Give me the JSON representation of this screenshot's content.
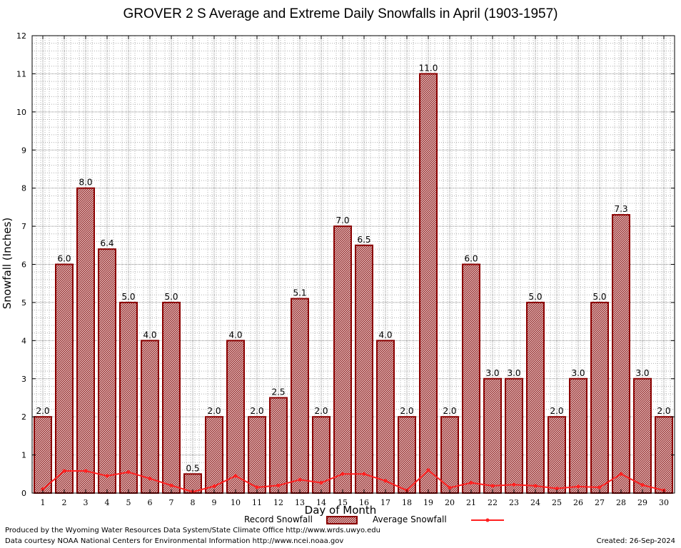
{
  "footer": {
    "produced_by": "Produced by the Wyoming Water Resources Data System/State Climate Office http://www.wrds.uwyo.edu",
    "courtesy": "Data courtesy NOAA National Centers for Environmental Information http://www.ncei.noaa.gov",
    "created": "Created: 26-Sep-2024"
  },
  "colors": {
    "bar_fill": "#9c2a2a",
    "bar_stroke": "#8b0000",
    "average_line": "#ff2020",
    "grid_dots": "#b0b0b0"
  },
  "chart_data": {
    "type": "bar",
    "title": "GROVER 2 S Average and Extreme Daily Snowfalls in April (1903-1957)",
    "xlabel": "Day of Month",
    "ylabel": "Snowfall (Inches)",
    "ylim": [
      0,
      12
    ],
    "yticks": [
      0,
      1,
      2,
      3,
      4,
      5,
      6,
      7,
      8,
      9,
      10,
      11,
      12
    ],
    "grid": true,
    "legend_position": "bottom",
    "categories": [
      "1",
      "2",
      "3",
      "4",
      "5",
      "6",
      "7",
      "8",
      "9",
      "10",
      "11",
      "12",
      "13",
      "14",
      "15",
      "16",
      "17",
      "18",
      "19",
      "20",
      "21",
      "22",
      "23",
      "24",
      "25",
      "26",
      "27",
      "28",
      "29",
      "30"
    ],
    "series": [
      {
        "name": "Record Snowfall",
        "kind": "bar",
        "values": [
          2.0,
          6.0,
          8.0,
          6.4,
          5.0,
          4.0,
          5.0,
          0.5,
          2.0,
          4.0,
          2.0,
          2.5,
          5.1,
          2.0,
          7.0,
          6.5,
          4.0,
          2.0,
          11.0,
          2.0,
          6.0,
          3.0,
          3.0,
          5.0,
          2.0,
          3.0,
          5.0,
          7.3,
          3.0,
          2.0
        ],
        "labels": [
          "2.0",
          "6.0",
          "8.0",
          "6.4",
          "5.0",
          "4.0",
          "5.0",
          "0.5",
          "2.0",
          "4.0",
          "2.0",
          "2.5",
          "5.1",
          "2.0",
          "7.0",
          "6.5",
          "4.0",
          "2.0",
          "11.0",
          "2.0",
          "6.0",
          "3.0",
          "3.0",
          "5.0",
          "2.0",
          "3.0",
          "5.0",
          "7.3",
          "3.0",
          "2.0"
        ]
      },
      {
        "name": "Average Snowfall",
        "kind": "line",
        "values": [
          0.1,
          0.58,
          0.58,
          0.45,
          0.55,
          0.38,
          0.2,
          0.03,
          0.18,
          0.45,
          0.15,
          0.2,
          0.35,
          0.27,
          0.5,
          0.5,
          0.32,
          0.07,
          0.6,
          0.14,
          0.27,
          0.19,
          0.22,
          0.19,
          0.12,
          0.17,
          0.15,
          0.5,
          0.21,
          0.07
        ]
      }
    ]
  }
}
